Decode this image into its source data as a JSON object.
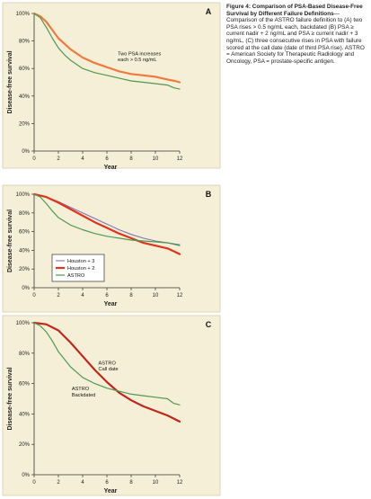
{
  "caption": {
    "title": "Figure 4: Comparison of PSA-Based Disease-Free Survival by Different Failure Definitions",
    "body": "—Comparison of the ASTRO failure definition to (A) two PSA rises > 0.5 ng/mL each, backdated (B) PSA ≥ current nadir + 2 ng/mL and PSA ≥ current nadir + 3 ng/mL, (C) three consecutive rises in PSA with failure scored at the call date (date of third PSA rise). ASTRO = American Society for Therapeutic Radiology and Oncology, PSA = prostate-specific antigen."
  },
  "colors": {
    "red": "#e0331b",
    "orange": "#f07a3a",
    "green": "#4c9a52",
    "darkred": "#b02215",
    "purple": "#7a76b8",
    "panel_bg": "#f6efd7"
  },
  "chart_data": [
    {
      "type": "line",
      "panel": "A",
      "xlabel": "Year",
      "ylabel": "Disease-free survival",
      "xlim": [
        0,
        12
      ],
      "ylim": [
        0,
        100
      ],
      "x_ticks": [
        0,
        2,
        4,
        6,
        8,
        10,
        12
      ],
      "y_ticks": [
        "0%",
        "20%",
        "40%",
        "60%",
        "80%",
        "100%"
      ],
      "series": [
        {
          "name": "",
          "color": "#f07a3a",
          "width": 2.2,
          "x": [
            0,
            0.5,
            1,
            1.5,
            2,
            2.5,
            3,
            3.5,
            4,
            5,
            6,
            7,
            8,
            9,
            10,
            11,
            11.6,
            12
          ],
          "y": [
            100,
            98,
            94,
            88,
            82,
            78,
            74,
            71,
            68,
            64,
            61,
            58,
            56,
            55,
            54,
            52,
            51,
            50
          ]
        },
        {
          "name": "",
          "color": "#4c9a52",
          "width": 1.2,
          "x": [
            0,
            0.5,
            1,
            1.5,
            2,
            2.5,
            3,
            3.5,
            4,
            5,
            6,
            7,
            8,
            9,
            10,
            11,
            11.5,
            12
          ],
          "y": [
            100,
            97,
            90,
            82,
            75,
            70,
            66,
            63,
            60,
            57,
            55,
            53,
            51,
            50,
            49,
            48,
            46,
            45
          ]
        }
      ],
      "annotations": [
        {
          "text": "Two PSA increases",
          "x": 6.9,
          "y": 69.5
        },
        {
          "text": "each > 0.5 ng/mL",
          "x": 6.9,
          "y": 65.5
        }
      ]
    },
    {
      "type": "line",
      "panel": "B",
      "xlabel": "Year",
      "ylabel": "Disease-free survival",
      "xlim": [
        0,
        12
      ],
      "ylim": [
        0,
        100
      ],
      "x_ticks": [
        0,
        2,
        4,
        6,
        8,
        10,
        12
      ],
      "y_ticks": [
        "0%",
        "20%",
        "40%",
        "60%",
        "80%",
        "100%"
      ],
      "series": [
        {
          "name": "Houston + 3",
          "color": "#7a76b8",
          "width": 1.1,
          "x": [
            0,
            1,
            2,
            3,
            4,
            5,
            6,
            7,
            8,
            9,
            10,
            11,
            12
          ],
          "y": [
            100,
            97,
            92,
            86,
            80,
            74,
            68,
            62,
            57,
            53,
            50,
            48,
            46
          ]
        },
        {
          "name": "Houston + 2",
          "color": "#e0331b",
          "width": 2.2,
          "x": [
            0,
            1,
            2,
            3,
            4,
            5,
            6,
            7,
            8,
            9,
            10,
            11,
            11.5,
            12
          ],
          "y": [
            100,
            97,
            91,
            84,
            77,
            70,
            64,
            58,
            53,
            48,
            45,
            42,
            39,
            36
          ]
        },
        {
          "name": "ASTRO",
          "color": "#4c9a52",
          "width": 1.2,
          "x": [
            0,
            0.5,
            1,
            1.5,
            2,
            3,
            4,
            5,
            6,
            7,
            8,
            9,
            10,
            11,
            12
          ],
          "y": [
            100,
            97,
            90,
            82,
            75,
            67,
            62,
            58,
            55,
            53,
            51,
            50,
            49,
            48,
            45
          ]
        }
      ],
      "legend": "bottom-left"
    },
    {
      "type": "line",
      "panel": "C",
      "xlabel": "Year",
      "ylabel": "Disease-free survival",
      "xlim": [
        0,
        12
      ],
      "ylim": [
        0,
        100
      ],
      "x_ticks": [
        0,
        2,
        4,
        6,
        8,
        10,
        12
      ],
      "y_ticks": [
        "0%",
        "20%",
        "40%",
        "60%",
        "80%",
        "100%"
      ],
      "series": [
        {
          "name": "",
          "color": "#c0261a",
          "width": 2.2,
          "x": [
            0,
            1,
            2,
            3,
            4,
            5,
            6,
            7,
            8,
            9,
            10,
            11,
            11.5,
            12
          ],
          "y": [
            100,
            99,
            95,
            87,
            78,
            69,
            61,
            54,
            49,
            45,
            42,
            39,
            37,
            35
          ]
        },
        {
          "name": "",
          "color": "#4c9a52",
          "width": 1.2,
          "x": [
            0,
            0.5,
            1,
            1.5,
            2,
            3,
            4,
            5,
            6,
            7,
            8,
            9,
            10,
            11,
            11.5,
            12
          ],
          "y": [
            100,
            98,
            94,
            88,
            81,
            71,
            64,
            60,
            57,
            55,
            53,
            52,
            51,
            50,
            47,
            46
          ]
        }
      ],
      "annotations": [
        {
          "text": "ASTRO",
          "x": 5.3,
          "y": 72.5
        },
        {
          "text": "Call date",
          "x": 5.3,
          "y": 68.5
        },
        {
          "text": "ASTRO",
          "x": 3.1,
          "y": 55.5
        },
        {
          "text": "Backdated",
          "x": 3.1,
          "y": 51.5
        }
      ]
    }
  ]
}
